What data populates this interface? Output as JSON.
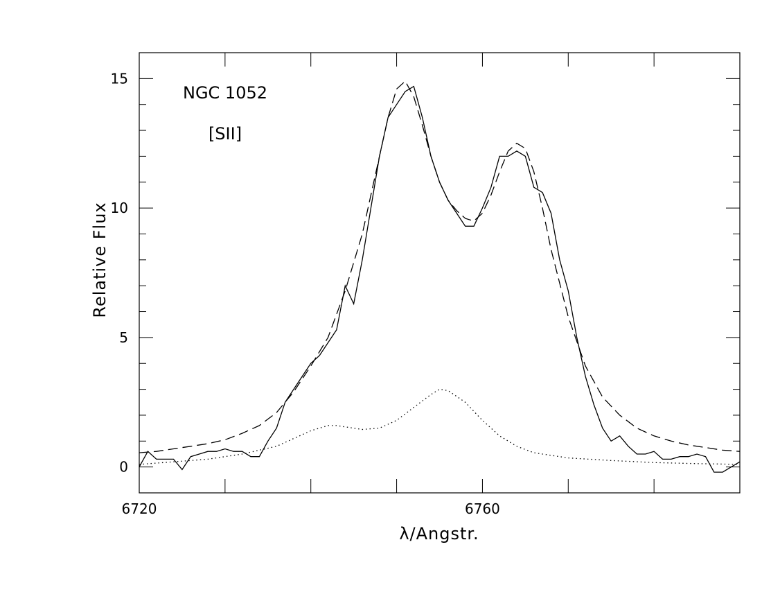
{
  "chart_data": {
    "type": "line",
    "annotations": [
      "NGC 1052",
      "[SII]"
    ],
    "xlabel": "λ/Angstr.",
    "ylabel": "Relative Flux",
    "xlim": [
      6720,
      6790
    ],
    "ylim": [
      -1,
      16
    ],
    "xticks": [
      6720,
      6760
    ],
    "xticks_minor": [
      6730,
      6740,
      6750,
      6770,
      6780
    ],
    "yticks": [
      0,
      5,
      10,
      15
    ],
    "yticks_minor": [
      1,
      2,
      3,
      4,
      6,
      7,
      8,
      9,
      11,
      12,
      13,
      14
    ],
    "series": [
      {
        "style": "solid",
        "color": "#000000",
        "x": [
          6720,
          6721,
          6722,
          6723,
          6724,
          6725,
          6726,
          6727,
          6728,
          6729,
          6730,
          6731,
          6732,
          6733,
          6734,
          6735,
          6736,
          6737,
          6738,
          6739,
          6740,
          6741,
          6742,
          6743,
          6744,
          6745,
          6746,
          6747,
          6748,
          6749,
          6750,
          6751,
          6752,
          6753,
          6754,
          6755,
          6756,
          6757,
          6758,
          6759,
          6760,
          6761,
          6762,
          6763,
          6764,
          6765,
          6766,
          6767,
          6768,
          6769,
          6770,
          6771,
          6772,
          6773,
          6774,
          6775,
          6776,
          6777,
          6778,
          6779,
          6780,
          6781,
          6782,
          6783,
          6784,
          6785,
          6786,
          6787,
          6788,
          6789,
          6790
        ],
        "values": [
          0.0,
          0.6,
          0.3,
          0.3,
          0.3,
          -0.1,
          0.4,
          0.5,
          0.6,
          0.6,
          0.7,
          0.6,
          0.6,
          0.4,
          0.4,
          1.0,
          1.5,
          2.5,
          3.0,
          3.5,
          4.0,
          4.3,
          4.8,
          5.3,
          7.0,
          6.3,
          8.0,
          10.0,
          12.0,
          13.5,
          14.0,
          14.5,
          14.7,
          13.5,
          12.0,
          11.0,
          10.3,
          9.8,
          9.3,
          9.3,
          10.0,
          10.8,
          12.0,
          12.0,
          12.2,
          12.0,
          10.8,
          10.6,
          9.8,
          8.0,
          6.8,
          5.0,
          3.5,
          2.4,
          1.5,
          1.0,
          1.2,
          0.8,
          0.5,
          0.5,
          0.6,
          0.3,
          0.3,
          0.4,
          0.4,
          0.5,
          0.4,
          -0.2,
          -0.2,
          0.0,
          0.2
        ]
      },
      {
        "style": "dashed",
        "color": "#000000",
        "x": [
          6720,
          6722,
          6724,
          6726,
          6728,
          6730,
          6732,
          6734,
          6736,
          6738,
          6740,
          6742,
          6744,
          6746,
          6748,
          6749,
          6750,
          6751,
          6752,
          6753,
          6754,
          6755,
          6756,
          6757,
          6758,
          6759,
          6760,
          6761,
          6762,
          6763,
          6764,
          6765,
          6766,
          6767,
          6768,
          6770,
          6772,
          6774,
          6776,
          6778,
          6780,
          6782,
          6784,
          6786,
          6788,
          6790
        ],
        "values": [
          0.55,
          0.6,
          0.7,
          0.8,
          0.9,
          1.05,
          1.3,
          1.6,
          2.1,
          2.9,
          3.9,
          5.0,
          6.8,
          9.0,
          12.0,
          13.5,
          14.6,
          14.9,
          14.3,
          13.2,
          12.0,
          11.0,
          10.3,
          9.9,
          9.6,
          9.5,
          9.8,
          10.5,
          11.4,
          12.2,
          12.5,
          12.3,
          11.4,
          10.0,
          8.4,
          5.8,
          3.9,
          2.7,
          2.0,
          1.5,
          1.2,
          1.0,
          0.85,
          0.75,
          0.65,
          0.6
        ]
      },
      {
        "style": "dotted",
        "color": "#000000",
        "x": [
          6720,
          6724,
          6728,
          6732,
          6736,
          6738,
          6740,
          6742,
          6743,
          6744,
          6746,
          6748,
          6750,
          6752,
          6754,
          6755,
          6756,
          6758,
          6760,
          6762,
          6764,
          6766,
          6770,
          6775,
          6780,
          6785,
          6790
        ],
        "values": [
          0.1,
          0.2,
          0.3,
          0.5,
          0.8,
          1.1,
          1.4,
          1.6,
          1.6,
          1.55,
          1.45,
          1.5,
          1.8,
          2.3,
          2.8,
          3.0,
          2.95,
          2.5,
          1.8,
          1.2,
          0.8,
          0.55,
          0.35,
          0.25,
          0.17,
          0.13,
          0.1
        ]
      }
    ]
  }
}
